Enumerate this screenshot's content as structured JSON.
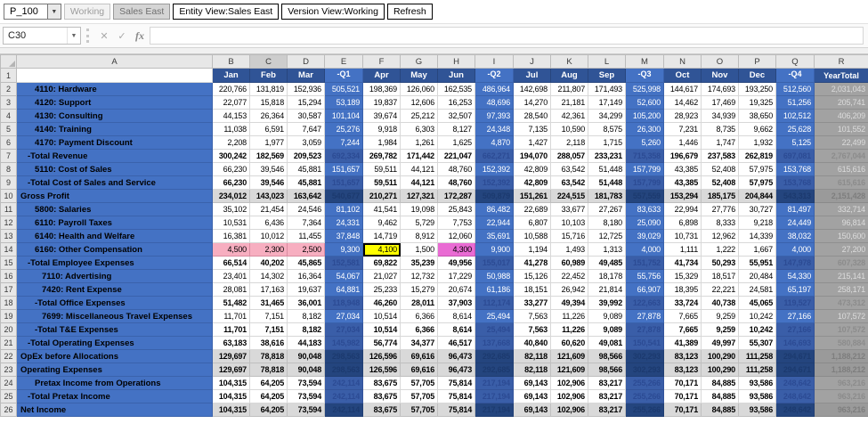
{
  "toolbar": {
    "pov_value": "P_100",
    "buttons": [
      {
        "label": "Working",
        "style": "disabled"
      },
      {
        "label": "Sales East",
        "style": "gray"
      },
      {
        "label": "Entity View:Sales East",
        "style": "normal"
      },
      {
        "label": "Version View:Working",
        "style": "normal"
      },
      {
        "label": "Refresh",
        "style": "normal"
      }
    ]
  },
  "formula_bar": {
    "name_box": "C30",
    "formula_value": ""
  },
  "icons": {
    "dropdown_arrow": "▼",
    "cancel": "✕",
    "enter": "✓",
    "function_fx": "fx"
  },
  "colors": {
    "header_blue": "#305496",
    "band_blue": "#4472C4",
    "total_quarter_blue": "#3A5EA8",
    "summary_navy": "#24457E",
    "year_gray": "#A2A2A2",
    "summary_gray": "#D9D9D9",
    "dirty_yellow": "#FFFF00",
    "readonly_pink": "#F7AEC0",
    "magenta": "#E96BD3"
  },
  "grid": {
    "column_letters": [
      "A",
      "B",
      "C",
      "D",
      "E",
      "F",
      "G",
      "H",
      "I",
      "J",
      "K",
      "L",
      "M",
      "N",
      "O",
      "P",
      "Q",
      "R"
    ],
    "active_column": "C",
    "quarter_cols": [
      3,
      7,
      11,
      15
    ],
    "year_col": 16,
    "header_row": [
      "Jan",
      "Feb",
      "Mar",
      "-Q1",
      "Apr",
      "May",
      "Jun",
      "-Q2",
      "Jul",
      "Aug",
      "Sep",
      "-Q3",
      "Oct",
      "Nov",
      "Dec",
      "-Q4",
      "YearTotal"
    ],
    "rows": [
      {
        "num": 2,
        "label": "4110: Hardware",
        "indent": 2,
        "type": "account",
        "values": [
          "220,766",
          "131,819",
          "152,936",
          "505,521",
          "198,369",
          "126,060",
          "162,535",
          "486,964",
          "142,698",
          "211,807",
          "171,493",
          "525,998",
          "144,617",
          "174,693",
          "193,250",
          "512,560",
          "2,031,043"
        ]
      },
      {
        "num": 3,
        "label": "4120: Support",
        "indent": 2,
        "type": "account",
        "values": [
          "22,077",
          "15,818",
          "15,294",
          "53,189",
          "19,837",
          "12,606",
          "16,253",
          "48,696",
          "14,270",
          "21,181",
          "17,149",
          "52,600",
          "14,462",
          "17,469",
          "19,325",
          "51,256",
          "205,741"
        ]
      },
      {
        "num": 4,
        "label": "4130: Consulting",
        "indent": 2,
        "type": "account",
        "values": [
          "44,153",
          "26,364",
          "30,587",
          "101,104",
          "39,674",
          "25,212",
          "32,507",
          "97,393",
          "28,540",
          "42,361",
          "34,299",
          "105,200",
          "28,923",
          "34,939",
          "38,650",
          "102,512",
          "406,209"
        ]
      },
      {
        "num": 5,
        "label": "4140: Training",
        "indent": 2,
        "type": "account",
        "values": [
          "11,038",
          "6,591",
          "7,647",
          "25,276",
          "9,918",
          "6,303",
          "8,127",
          "24,348",
          "7,135",
          "10,590",
          "8,575",
          "26,300",
          "7,231",
          "8,735",
          "9,662",
          "25,628",
          "101,552"
        ]
      },
      {
        "num": 6,
        "label": "4170: Payment Discount",
        "indent": 2,
        "type": "account",
        "values": [
          "2,208",
          "1,977",
          "3,059",
          "7,244",
          "1,984",
          "1,261",
          "1,625",
          "4,870",
          "1,427",
          "2,118",
          "1,715",
          "5,260",
          "1,446",
          "1,747",
          "1,932",
          "5,125",
          "22,499"
        ]
      },
      {
        "num": 7,
        "label": "-Total Revenue",
        "indent": 1,
        "type": "total",
        "values": [
          "300,242",
          "182,569",
          "209,523",
          "692,334",
          "269,782",
          "171,442",
          "221,047",
          "662,271",
          "194,070",
          "288,057",
          "233,231",
          "715,358",
          "196,679",
          "237,583",
          "262,819",
          "697,081",
          "2,767,044"
        ]
      },
      {
        "num": 8,
        "label": "5110: Cost of Sales",
        "indent": 2,
        "type": "account",
        "values": [
          "66,230",
          "39,546",
          "45,881",
          "151,657",
          "59,511",
          "44,121",
          "48,760",
          "152,392",
          "42,809",
          "63,542",
          "51,448",
          "157,799",
          "43,385",
          "52,408",
          "57,975",
          "153,768",
          "615,616"
        ]
      },
      {
        "num": 9,
        "label": "-Total Cost of Sales and Service",
        "indent": 1,
        "type": "total",
        "values": [
          "66,230",
          "39,546",
          "45,881",
          "151,657",
          "59,511",
          "44,121",
          "48,760",
          "152,392",
          "42,809",
          "63,542",
          "51,448",
          "157,799",
          "43,385",
          "52,408",
          "57,975",
          "153,768",
          "615,616"
        ]
      },
      {
        "num": 10,
        "label": "Gross Profit",
        "indent": 0,
        "type": "summary",
        "values": [
          "234,012",
          "143,023",
          "163,642",
          "540,677",
          "210,271",
          "127,321",
          "172,287",
          "509,879",
          "151,261",
          "224,515",
          "181,783",
          "557,559",
          "153,294",
          "185,175",
          "204,844",
          "543,313",
          "2,151,428"
        ]
      },
      {
        "num": 11,
        "label": "5800: Salaries",
        "indent": 2,
        "type": "account",
        "values": [
          "35,102",
          "21,454",
          "24,546",
          "81,102",
          "41,541",
          "19,098",
          "25,843",
          "86,482",
          "22,689",
          "33,677",
          "27,267",
          "83,633",
          "22,994",
          "27,776",
          "30,727",
          "81,497",
          "332,714"
        ]
      },
      {
        "num": 12,
        "label": "6110: Payroll Taxes",
        "indent": 2,
        "type": "account",
        "values": [
          "10,531",
          "6,436",
          "7,364",
          "24,331",
          "9,462",
          "5,729",
          "7,753",
          "22,944",
          "6,807",
          "10,103",
          "8,180",
          "25,090",
          "6,898",
          "8,333",
          "9,218",
          "24,449",
          "96,814"
        ]
      },
      {
        "num": 13,
        "label": "6140: Health and Welfare",
        "indent": 2,
        "type": "account",
        "values": [
          "16,381",
          "10,012",
          "11,455",
          "37,848",
          "14,719",
          "8,912",
          "12,060",
          "35,691",
          "10,588",
          "15,716",
          "12,725",
          "39,029",
          "10,731",
          "12,962",
          "14,339",
          "38,032",
          "150,600"
        ]
      },
      {
        "num": 14,
        "label": "6160: Other Compensation",
        "indent": 2,
        "type": "account",
        "cell_styles": {
          "0": "c-pink",
          "1": "c-pink",
          "2": "c-pink",
          "3": "c-yellow",
          "4": "c-yellow c-cursor",
          "5": "c-white",
          "6": "c-magenta",
          "7": "c-pink"
        },
        "values": [
          "4,500",
          "2,300",
          "2,500",
          "9,300",
          "4,100",
          "1,500",
          "4,300",
          "9,900",
          "1,194",
          "1,493",
          "1,313",
          "4,000",
          "1,111",
          "1,222",
          "1,667",
          "4,000",
          "27,200"
        ]
      },
      {
        "num": 15,
        "label": "-Total Employee Expenses",
        "indent": 1,
        "type": "total",
        "values": [
          "66,514",
          "40,202",
          "45,865",
          "152,581",
          "69,822",
          "35,239",
          "49,956",
          "155,017",
          "41,278",
          "60,989",
          "49,485",
          "151,752",
          "41,734",
          "50,293",
          "55,951",
          "147,978",
          "607,328"
        ]
      },
      {
        "num": 16,
        "label": "7110: Advertising",
        "indent": 3,
        "type": "account",
        "values": [
          "23,401",
          "14,302",
          "16,364",
          "54,067",
          "21,027",
          "12,732",
          "17,229",
          "50,988",
          "15,126",
          "22,452",
          "18,178",
          "55,756",
          "15,329",
          "18,517",
          "20,484",
          "54,330",
          "215,141"
        ]
      },
      {
        "num": 17,
        "label": "7420: Rent Expense",
        "indent": 3,
        "type": "account",
        "values": [
          "28,081",
          "17,163",
          "19,637",
          "64,881",
          "25,233",
          "15,279",
          "20,674",
          "61,186",
          "18,151",
          "26,942",
          "21,814",
          "66,907",
          "18,395",
          "22,221",
          "24,581",
          "65,197",
          "258,171"
        ]
      },
      {
        "num": 18,
        "label": "-Total Office Expenses",
        "indent": 2,
        "type": "total",
        "values": [
          "51,482",
          "31,465",
          "36,001",
          "118,948",
          "46,260",
          "28,011",
          "37,903",
          "112,174",
          "33,277",
          "49,394",
          "39,992",
          "122,663",
          "33,724",
          "40,738",
          "45,065",
          "119,527",
          "473,312"
        ]
      },
      {
        "num": 19,
        "label": "7699: Miscellaneous Travel Expenses",
        "indent": 3,
        "type": "account",
        "values": [
          "11,701",
          "7,151",
          "8,182",
          "27,034",
          "10,514",
          "6,366",
          "8,614",
          "25,494",
          "7,563",
          "11,226",
          "9,089",
          "27,878",
          "7,665",
          "9,259",
          "10,242",
          "27,166",
          "107,572"
        ]
      },
      {
        "num": 20,
        "label": "-Total T&E Expenses",
        "indent": 2,
        "type": "total",
        "values": [
          "11,701",
          "7,151",
          "8,182",
          "27,034",
          "10,514",
          "6,366",
          "8,614",
          "25,494",
          "7,563",
          "11,226",
          "9,089",
          "27,878",
          "7,665",
          "9,259",
          "10,242",
          "27,166",
          "107,572"
        ]
      },
      {
        "num": 21,
        "label": "-Total Operating Expenses",
        "indent": 1,
        "type": "total",
        "values": [
          "63,183",
          "38,616",
          "44,183",
          "145,982",
          "56,774",
          "34,377",
          "46,517",
          "137,668",
          "40,840",
          "60,620",
          "49,081",
          "150,541",
          "41,389",
          "49,997",
          "55,307",
          "146,693",
          "580,884"
        ]
      },
      {
        "num": 22,
        "label": "OpEx before Allocations",
        "indent": 0,
        "type": "summary",
        "values": [
          "129,697",
          "78,818",
          "90,048",
          "298,563",
          "126,596",
          "69,616",
          "96,473",
          "292,685",
          "82,118",
          "121,609",
          "98,566",
          "302,293",
          "83,123",
          "100,290",
          "111,258",
          "294,671",
          "1,188,212"
        ]
      },
      {
        "num": 23,
        "label": "Operating Expenses",
        "indent": 0,
        "type": "summary",
        "values": [
          "129,697",
          "78,818",
          "90,048",
          "298,563",
          "126,596",
          "69,616",
          "96,473",
          "292,685",
          "82,118",
          "121,609",
          "98,566",
          "302,293",
          "83,123",
          "100,290",
          "111,258",
          "294,671",
          "1,188,212"
        ]
      },
      {
        "num": 24,
        "label": "Pretax Income from Operations",
        "indent": 2,
        "type": "total",
        "values": [
          "104,315",
          "64,205",
          "73,594",
          "242,114",
          "83,675",
          "57,705",
          "75,814",
          "217,194",
          "69,143",
          "102,906",
          "83,217",
          "255,266",
          "70,171",
          "84,885",
          "93,586",
          "248,642",
          "963,216"
        ]
      },
      {
        "num": 25,
        "label": "-Total Pretax Income",
        "indent": 1,
        "type": "total",
        "values": [
          "104,315",
          "64,205",
          "73,594",
          "242,114",
          "83,675",
          "57,705",
          "75,814",
          "217,194",
          "69,143",
          "102,906",
          "83,217",
          "255,266",
          "70,171",
          "84,885",
          "93,586",
          "248,642",
          "963,216"
        ]
      },
      {
        "num": 26,
        "label": "Net Income",
        "indent": 0,
        "type": "summary",
        "values": [
          "104,315",
          "64,205",
          "73,594",
          "242,114",
          "83,675",
          "57,705",
          "75,814",
          "217,194",
          "69,143",
          "102,906",
          "83,217",
          "255,266",
          "70,171",
          "84,885",
          "93,586",
          "248,642",
          "963,216"
        ]
      }
    ]
  }
}
